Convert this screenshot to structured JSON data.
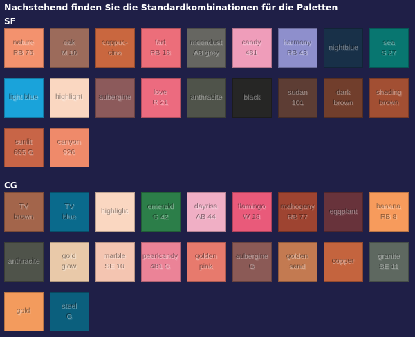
{
  "heading": "Nachstehend finden Sie die Standardkombinationen für die Paletten",
  "sections": [
    {
      "label": "SF",
      "swatches": [
        {
          "lines": [
            "nature",
            "RB 76"
          ],
          "color": "#f3926e"
        },
        {
          "lines": [
            "oak",
            "M 10"
          ],
          "color": "#9c6b5b"
        },
        {
          "lines": [
            "cappuc-",
            "cino"
          ],
          "color": "#c9673f"
        },
        {
          "lines": [
            "fart",
            "RB 18"
          ],
          "color": "#ec6e7a"
        },
        {
          "lines": [
            "moondust",
            "AB grey"
          ],
          "color": "#666661"
        },
        {
          "lines": [
            "candy",
            "481"
          ],
          "color": "#ef9dba"
        },
        {
          "lines": [
            "harmony",
            "RB 43"
          ],
          "color": "#8e8fcc"
        },
        {
          "lines": [
            "nightblue"
          ],
          "color": "#183048"
        },
        {
          "lines": [
            "sea",
            "S 27"
          ],
          "color": "#087670"
        },
        {
          "lines": [
            "light blue"
          ],
          "color": "#1aa3da"
        },
        {
          "lines": [
            "highlight"
          ],
          "color": "#fad7c1"
        },
        {
          "lines": [
            "aubergine"
          ],
          "color": "#8c5a5b"
        },
        {
          "lines": [
            "love",
            "R 21"
          ],
          "color": "#ec6b7f"
        },
        {
          "lines": [
            "anthracite"
          ],
          "color": "#4f534a"
        },
        {
          "lines": [
            "black"
          ],
          "color": "#262625"
        },
        {
          "lines": [
            "sudan",
            "101"
          ],
          "color": "#5d3d34"
        },
        {
          "lines": [
            "dark",
            "brown"
          ],
          "color": "#713e2c"
        },
        {
          "lines": [
            "shading",
            "brown"
          ],
          "color": "#a24f33"
        },
        {
          "lines": [
            "sunlit",
            "665 G"
          ],
          "color": "#c86547"
        },
        {
          "lines": [
            "canyon",
            "926"
          ],
          "color": "#ef8a6a"
        }
      ]
    },
    {
      "label": "CG",
      "swatches": [
        {
          "lines": [
            "TV",
            "brown"
          ],
          "color": "#a3654b"
        },
        {
          "lines": [
            "TV",
            "blue"
          ],
          "color": "#0a6a8c"
        },
        {
          "lines": [
            "highlight"
          ],
          "color": "#fad7c1"
        },
        {
          "lines": [
            "emerald",
            "G 42"
          ],
          "color": "#2c7e49"
        },
        {
          "lines": [
            "dayriss",
            "AB 44"
          ],
          "color": "#f0afc5"
        },
        {
          "lines": [
            "flamingo",
            "W 18"
          ],
          "color": "#e95a7a"
        },
        {
          "lines": [
            "mahogany",
            "RB 77"
          ],
          "color": "#9e4431"
        },
        {
          "lines": [
            "eggplant"
          ],
          "color": "#68333b"
        },
        {
          "lines": [
            "banana",
            "RB 8"
          ],
          "color": "#f79b5c"
        },
        {
          "lines": [
            "anthracite"
          ],
          "color": "#4f534a"
        },
        {
          "lines": [
            "gold",
            "glow"
          ],
          "color": "#e9c9a9"
        },
        {
          "lines": [
            "marble",
            "SE 10"
          ],
          "color": "#f4c5b1"
        },
        {
          "lines": [
            "pearlcandy",
            "481 G"
          ],
          "color": "#eb8397"
        },
        {
          "lines": [
            "golden",
            "pink"
          ],
          "color": "#e77a6d"
        },
        {
          "lines": [
            "aubergine",
            "G"
          ],
          "color": "#8b5a56"
        },
        {
          "lines": [
            "golden",
            "sand"
          ],
          "color": "#c37a51"
        },
        {
          "lines": [
            "copper"
          ],
          "color": "#c4643e"
        },
        {
          "lines": [
            "granite",
            "SE 11"
          ],
          "color": "#5e6860"
        },
        {
          "lines": [
            "gold"
          ],
          "color": "#f39b5d"
        },
        {
          "lines": [
            "steel",
            "G"
          ],
          "color": "#0b5f7d"
        }
      ]
    }
  ]
}
